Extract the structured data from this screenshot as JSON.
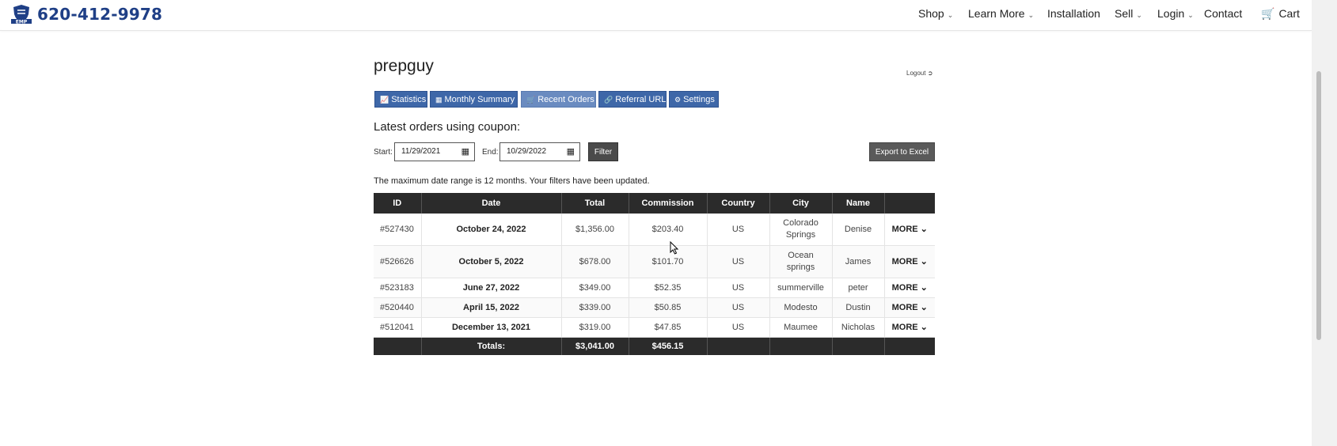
{
  "header": {
    "phone": "620-412-9978",
    "nav": [
      {
        "label": "Shop",
        "dropdown": true
      },
      {
        "label": "Learn More",
        "dropdown": true
      },
      {
        "label": "Installation",
        "dropdown": false
      },
      {
        "label": "Sell",
        "dropdown": true
      },
      {
        "label": "Login",
        "dropdown": true
      },
      {
        "label": "Contact",
        "dropdown": false
      },
      {
        "label": "Cart",
        "dropdown": false
      }
    ],
    "brand_color": "#1f3f86"
  },
  "account": {
    "username": "prepguy",
    "logout": "Logout"
  },
  "tabs": [
    {
      "label": "Statistics",
      "icon": "line-chart-icon"
    },
    {
      "label": "Monthly Summary",
      "icon": "calendar-icon"
    },
    {
      "label": "Recent Orders",
      "icon": "cart-icon",
      "active": true
    },
    {
      "label": "Referral URL",
      "icon": "link-icon"
    },
    {
      "label": "Settings",
      "icon": "gear-icon"
    }
  ],
  "orders": {
    "title": "Latest orders using coupon:",
    "start_label": "Start:",
    "start_value": "11/29/2021",
    "end_label": "End:",
    "end_value": "10/29/2022",
    "filter_label": "Filter",
    "export_label": "Export to Excel",
    "note": "The maximum date range is 12 months. Your filters have been updated.",
    "columns": [
      "ID",
      "Date",
      "Total",
      "Commission",
      "Country",
      "City",
      "Name",
      ""
    ],
    "rows": [
      {
        "id": "#527430",
        "date": "October 24, 2022",
        "total": "$1,356.00",
        "commission": "$203.40",
        "country": "US",
        "city": "Colorado Springs",
        "name": "Denise",
        "more": "MORE"
      },
      {
        "id": "#526626",
        "date": "October 5, 2022",
        "total": "$678.00",
        "commission": "$101.70",
        "country": "US",
        "city": "Ocean springs",
        "name": "James",
        "more": "MORE"
      },
      {
        "id": "#523183",
        "date": "June 27, 2022",
        "total": "$349.00",
        "commission": "$52.35",
        "country": "US",
        "city": "summerville",
        "name": "peter",
        "more": "MORE"
      },
      {
        "id": "#520440",
        "date": "April 15, 2022",
        "total": "$339.00",
        "commission": "$50.85",
        "country": "US",
        "city": "Modesto",
        "name": "Dustin",
        "more": "MORE"
      },
      {
        "id": "#512041",
        "date": "December 13, 2021",
        "total": "$319.00",
        "commission": "$47.85",
        "country": "US",
        "city": "Maumee",
        "name": "Nicholas",
        "more": "MORE"
      }
    ],
    "totals": {
      "label": "Totals:",
      "total": "$3,041.00",
      "commission": "$456.15"
    }
  }
}
